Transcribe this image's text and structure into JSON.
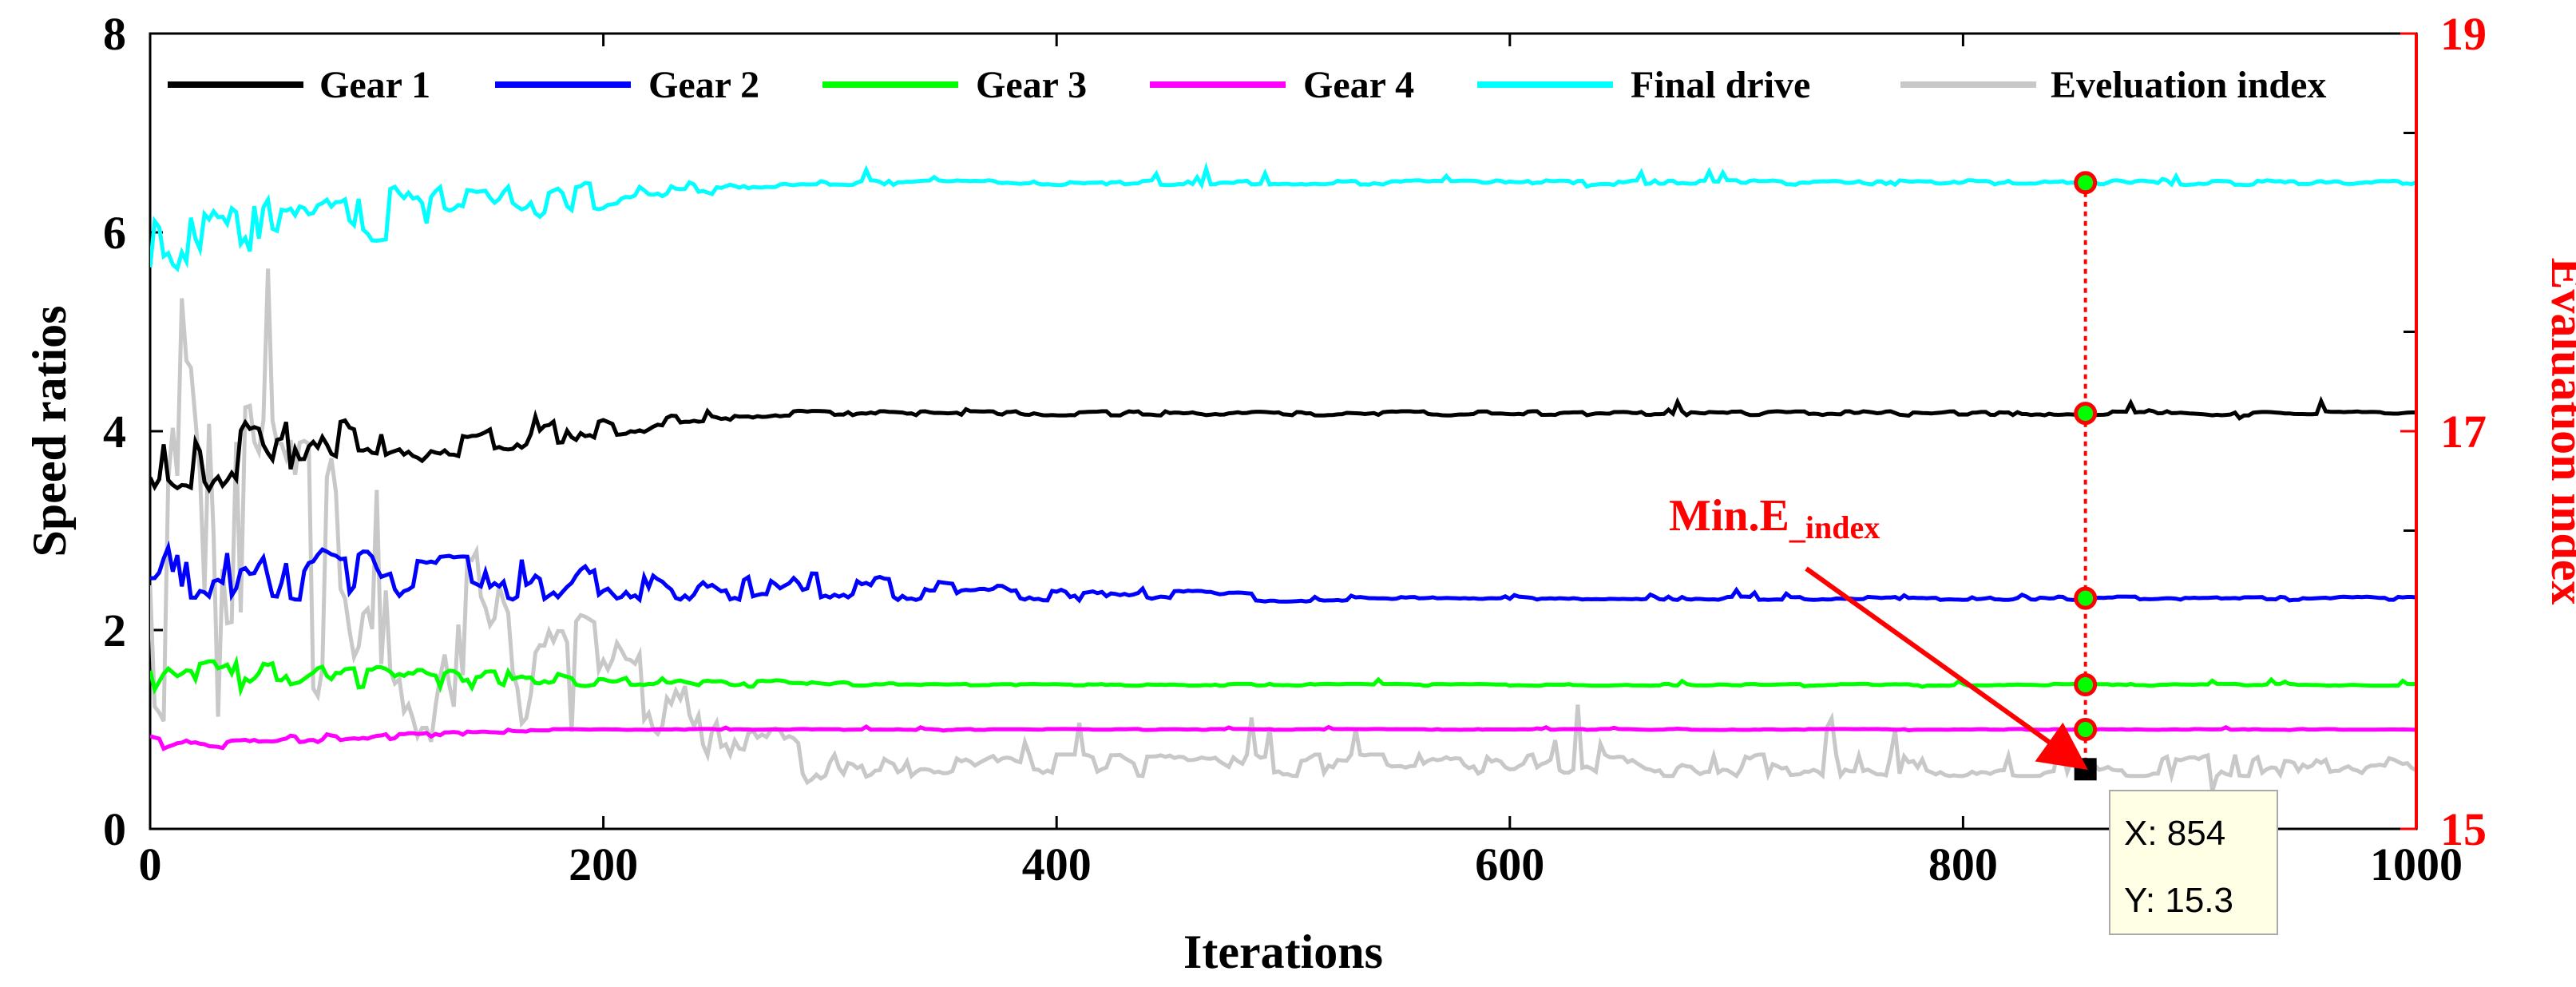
{
  "chart_data": {
    "type": "line",
    "xlabel": "Iterations",
    "ylabel": "Speed ratios",
    "ylabel_right": "Evaluation index",
    "xlim": [
      0,
      1000
    ],
    "ylim": [
      0,
      8
    ],
    "ylim_right": [
      15,
      19
    ],
    "xticks": [
      "0",
      "200",
      "400",
      "600",
      "800",
      "1000"
    ],
    "yticks": [
      "0",
      "2",
      "4",
      "6",
      "8"
    ],
    "yticks_right": [
      "15",
      "17",
      "19"
    ],
    "legend_position": "top",
    "series": [
      {
        "name": "Gear 1",
        "color": "#000000",
        "axis": "left",
        "start": 3.7,
        "final": 4.18,
        "noise_start": 0.35,
        "settle_at": 300
      },
      {
        "name": "Gear 2",
        "color": "#0000ff",
        "axis": "left",
        "start": 2.6,
        "final": 2.32,
        "noise_start": 0.28,
        "settle_at": 560
      },
      {
        "name": "Gear 3",
        "color": "#00ff00",
        "axis": "left",
        "start": 1.55,
        "final": 1.45,
        "noise_start": 0.15,
        "settle_at": 350
      },
      {
        "name": "Gear 4",
        "color": "#ff00ff",
        "axis": "left",
        "start": 0.85,
        "final": 1.0,
        "noise_start": 0.08,
        "settle_at": 200
      },
      {
        "name": "Final drive",
        "color": "#00ffff",
        "axis": "left",
        "start": 6.0,
        "final": 6.5,
        "noise_start": 0.4,
        "settle_at": 300
      },
      {
        "name": "Eveluation index",
        "color": "#c8c8c8",
        "axis": "right",
        "start": 16.5,
        "final": 15.32,
        "noise_start": 0.9,
        "settle_at": 320
      }
    ],
    "markers_at_x": 854,
    "marker_values": [
      6.5,
      4.18,
      2.32,
      1.45,
      1.0
    ],
    "min_point": {
      "x": 854,
      "y": 15.3
    },
    "annotation": {
      "label": "Min.E",
      "subscript": "_index"
    },
    "datatip": {
      "x_label": "X: 854",
      "y_label": "Y: 15.3"
    }
  }
}
